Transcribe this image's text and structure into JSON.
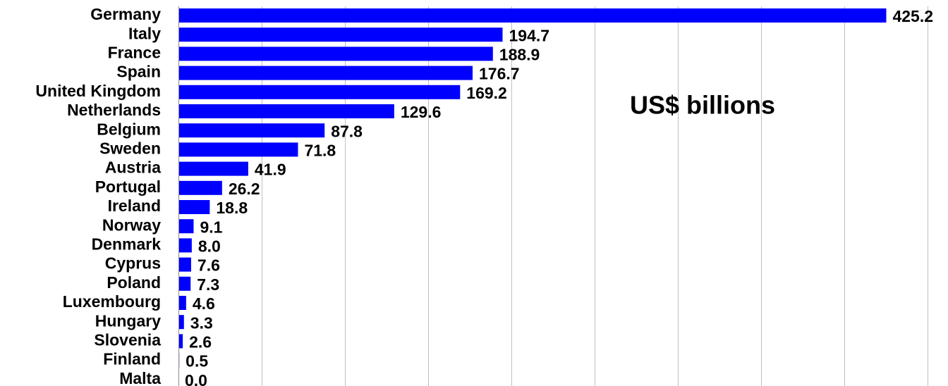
{
  "chart_data": {
    "type": "bar",
    "orientation": "horizontal",
    "categories": [
      "Germany",
      "Italy",
      "France",
      "Spain",
      "United Kingdom",
      "Netherlands",
      "Belgium",
      "Sweden",
      "Austria",
      "Portugal",
      "Ireland",
      "Norway",
      "Denmark",
      "Cyprus",
      "Poland",
      "Luxembourg",
      "Hungary",
      "Slovenia",
      "Finland",
      "Malta"
    ],
    "values": [
      425.2,
      194.7,
      188.9,
      176.7,
      169.2,
      129.6,
      87.8,
      71.8,
      41.9,
      26.2,
      18.8,
      9.1,
      8.0,
      7.6,
      7.3,
      4.6,
      3.3,
      2.6,
      0.5,
      0.0
    ],
    "value_labels": [
      "425.2",
      "194.7",
      "188.9",
      "176.7",
      "169.2",
      "129.6",
      "87.8",
      "71.8",
      "41.9",
      "26.2",
      "18.8",
      "9.1",
      "8.0",
      "7.6",
      "7.3",
      "4.6",
      "3.3",
      "2.6",
      "0.5",
      "0.0"
    ],
    "annotation": "US$ billions",
    "xlim": [
      0,
      450
    ],
    "grid": true,
    "grid_step": 50,
    "bar_color": "#0000FF",
    "grid_color": "#BFBFBF"
  }
}
